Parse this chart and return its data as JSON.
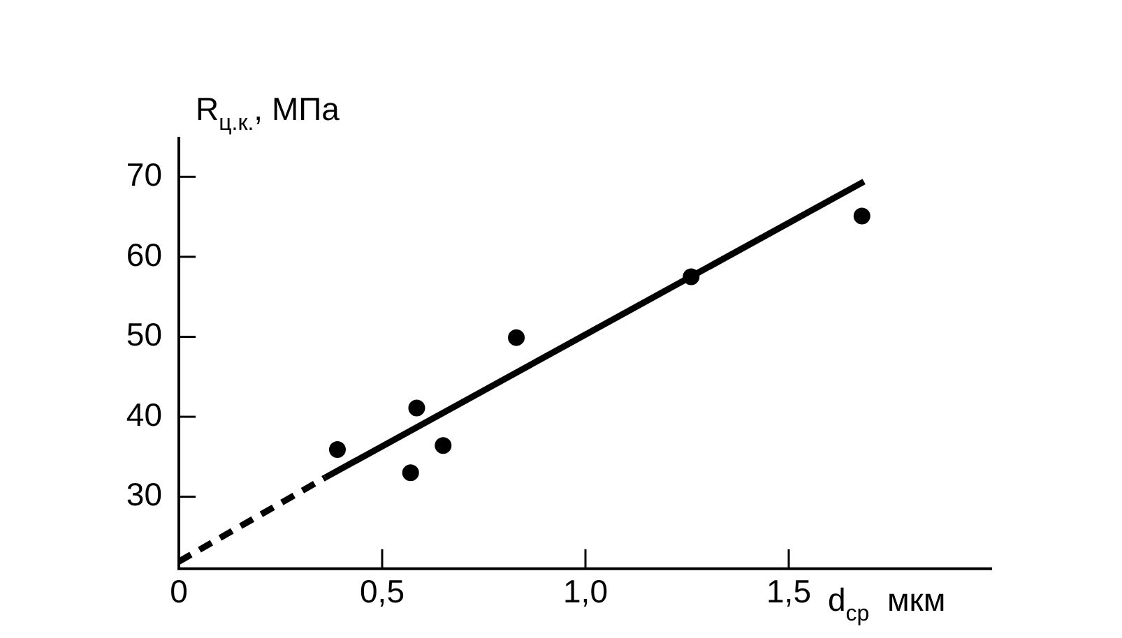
{
  "chart_data": {
    "type": "scatter",
    "xlabel": "d$_{ср}$  мкм",
    "ylabel": "R$_{ц.к.}$, МПа",
    "xlim": [
      0,
      2
    ],
    "ylim": [
      21,
      75
    ],
    "xticks": [
      0,
      {
        "value": 0.5,
        "label": "0,5"
      },
      {
        "value": 1,
        "label": "1,0"
      },
      {
        "value": 1.5,
        "label": "1,5"
      }
    ],
    "yticks": [
      30,
      40,
      50,
      60,
      70
    ],
    "grid": false,
    "legend": false,
    "marker": "circle",
    "series": [
      {
        "color": "#000000",
        "x": [
          0.39,
          0.57,
          0.585,
          0.65,
          0.83,
          1.26,
          1.68
        ],
        "values": [
          35.9,
          33.0,
          41.1,
          36.4,
          49.9,
          57.5,
          65.1
        ]
      },
      {
        "type": "line",
        "color": "#000000",
        "line_style": "dashed",
        "marker": "none",
        "x": [
          0,
          0.36
        ],
        "values": [
          21.9,
          32.4
        ]
      },
      {
        "type": "line",
        "color": "#000000",
        "line_style": "solid",
        "marker": "none",
        "x": [
          0.36,
          1.685
        ],
        "values": [
          32.4,
          69.4
        ]
      }
    ]
  }
}
